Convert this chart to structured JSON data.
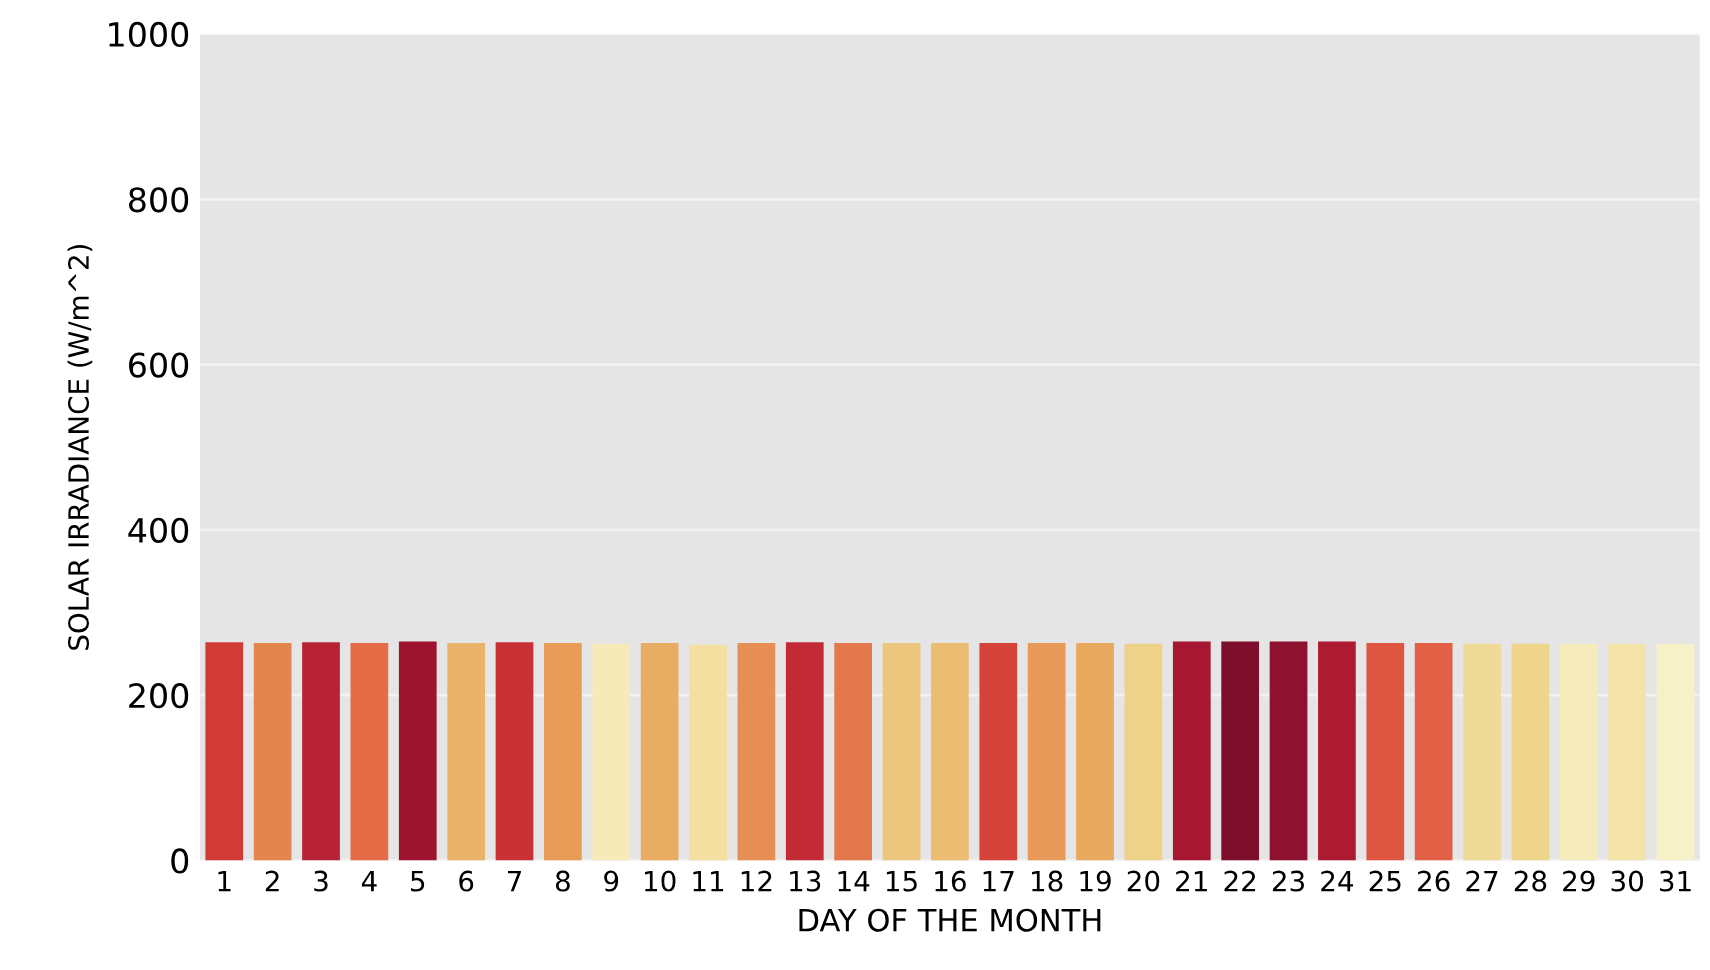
{
  "chart_data": {
    "type": "bar",
    "xlabel": "DAY OF THE MONTH",
    "ylabel": "SOLAR IRRADIANCE (W/m^2)",
    "categories": [
      "1",
      "2",
      "3",
      "4",
      "5",
      "6",
      "7",
      "8",
      "9",
      "10",
      "11",
      "12",
      "13",
      "14",
      "15",
      "16",
      "17",
      "18",
      "19",
      "20",
      "21",
      "22",
      "23",
      "24",
      "25",
      "26",
      "27",
      "28",
      "29",
      "30",
      "31"
    ],
    "values": [
      264,
      263,
      264,
      263,
      265,
      263,
      264,
      263,
      262,
      263,
      261,
      263,
      264,
      263,
      263,
      263,
      263,
      263,
      263,
      262,
      265,
      265,
      265,
      265,
      263,
      263,
      262,
      262,
      262,
      262,
      262
    ],
    "colors": [
      "#d13b36",
      "#e3864e",
      "#b72234",
      "#e46d48",
      "#9c1430",
      "#e9b46a",
      "#c83135",
      "#e89c58",
      "#f6ebb8",
      "#e8ac62",
      "#f3e0a0",
      "#e68e53",
      "#c22a35",
      "#e3784c",
      "#ebc67c",
      "#ebbd72",
      "#d5433a",
      "#e89a5a",
      "#e8a95f",
      "#efd28a",
      "#a81732",
      "#7e0f2c",
      "#8e112f",
      "#ad1b32",
      "#de5641",
      "#e26046",
      "#efda97",
      "#efd48c",
      "#f6ecbb",
      "#f3e3a8",
      "#f7f1c8"
    ],
    "ylim": [
      0,
      1000
    ],
    "yticks": [
      0,
      200,
      400,
      600,
      800,
      1000
    ],
    "grid": "y"
  }
}
